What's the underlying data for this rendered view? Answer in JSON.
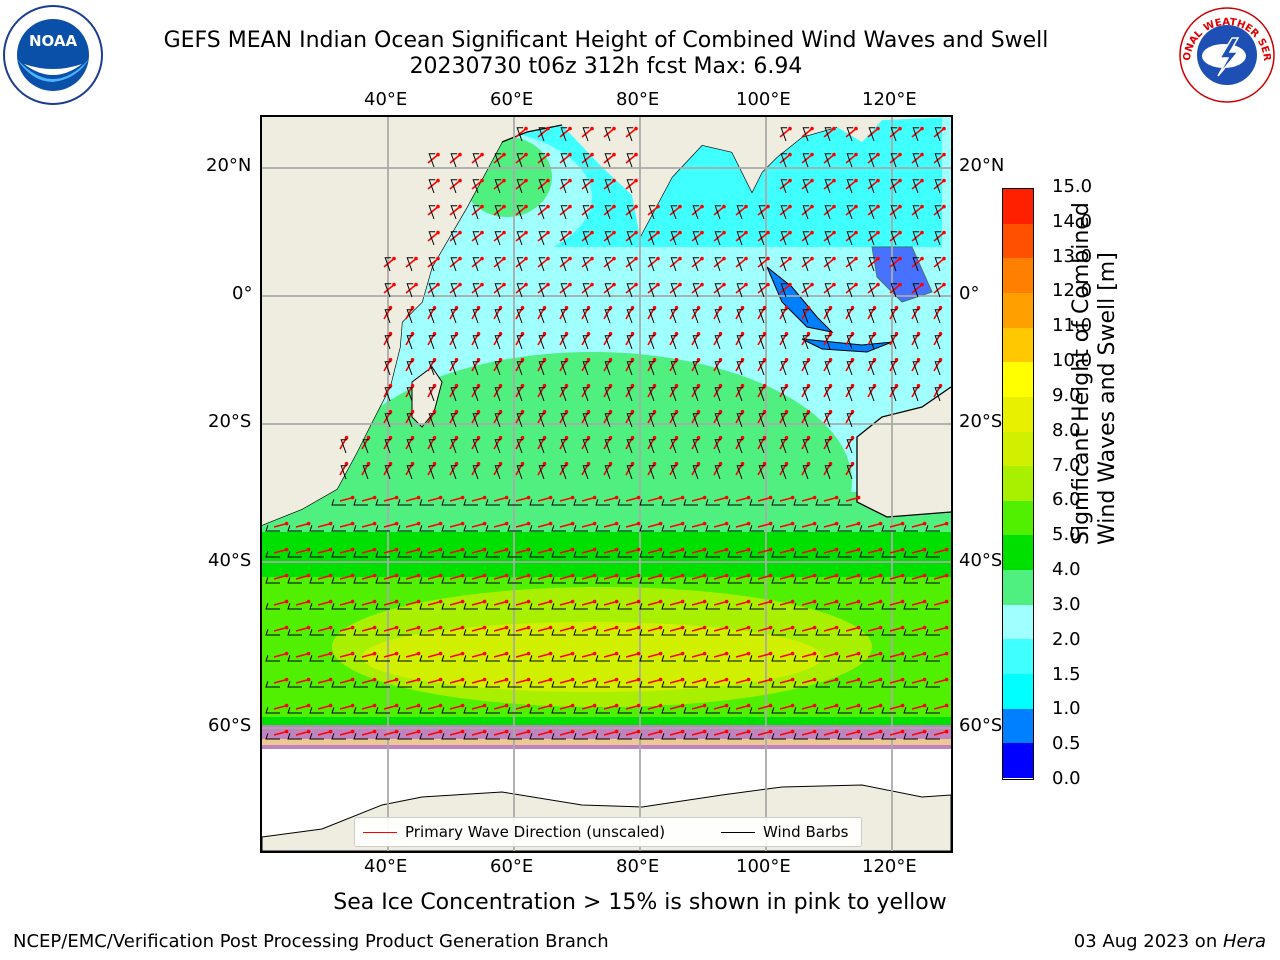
{
  "title": {
    "line1": "GEFS MEAN Indian Ocean Significant Height of Combined Wind Waves and Swell",
    "line2": "20230730 t06z 312h fcst   Max: 6.94"
  },
  "map": {
    "lon_labels": [
      "40°E",
      "60°E",
      "80°E",
      "100°E",
      "120°E"
    ],
    "lat_labels": [
      "20°N",
      "0°",
      "20°S",
      "40°S",
      "60°S"
    ],
    "lon_range": [
      20,
      130
    ],
    "lat_range": [
      -75,
      27
    ],
    "field": "Significant height of combined wind waves and swell",
    "max_value": 6.94
  },
  "colorbar": {
    "label_line1": "Significant Height of Combined",
    "label_line2": "Wind Waves and Swell [m]",
    "ticks": [
      "0.0",
      "0.5",
      "1.0",
      "1.5",
      "2.0",
      "3.0",
      "4.0",
      "5.0",
      "6.0",
      "7.0",
      "8.0",
      "9.0",
      "10.0",
      "11.0",
      "12.0",
      "13.0",
      "14.0",
      "15.0"
    ],
    "colors": [
      "#0000ff",
      "#0080ff",
      "#00ffff",
      "#40ffff",
      "#a0ffff",
      "#50f080",
      "#00e000",
      "#50f000",
      "#a8f000",
      "#d0f000",
      "#e8f000",
      "#ffff00",
      "#ffc800",
      "#ffa000",
      "#ff8000",
      "#ff5000",
      "#ff2000"
    ]
  },
  "legend": {
    "wave_label": "Primary Wave Direction (unscaled)",
    "wave_color": "#ff0000",
    "barb_label": "Wind Barbs",
    "barb_color": "#000000"
  },
  "caption": "Sea Ice Concentration > 15% is shown in pink to yellow",
  "footer": {
    "left": "NCEP/EMC/Verification Post Processing Product Generation Branch",
    "right_date": "03 Aug 2023 on ",
    "right_machine": "Hera"
  },
  "logos": {
    "noaa_text": "NOAA",
    "nws_text": "NATIONAL WEATHER SERVICE"
  }
}
